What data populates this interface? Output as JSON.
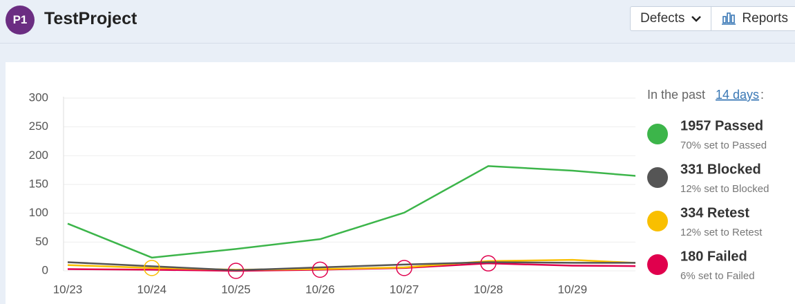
{
  "header": {
    "avatar": "P1",
    "project": "TestProject",
    "buttons": [
      "Defects",
      "Reports"
    ]
  },
  "chart_data": {
    "type": "line",
    "categories": [
      "10/23",
      "10/24",
      "10/25",
      "10/26",
      "10/27",
      "10/28",
      "10/29",
      null
    ],
    "series": [
      {
        "name": "1957 Passed",
        "note": "70% set to Passed",
        "color": "#3cb54a",
        "values": [
          82,
          23,
          38,
          55,
          101,
          182,
          174,
          162
        ]
      },
      {
        "name": "331 Blocked",
        "note": "12% set to Blocked",
        "color": "#555555",
        "values": [
          15,
          8,
          1,
          6,
          11,
          15,
          14,
          14
        ]
      },
      {
        "name": "334 Retest",
        "note": "12% set to Retest",
        "color": "#f9bf00",
        "values": [
          10,
          5,
          2,
          3,
          6,
          17,
          19,
          12
        ]
      },
      {
        "name": "180 Failed",
        "note": "6% set to Failed",
        "color": "#e0004d",
        "values": [
          3,
          2,
          0,
          2,
          5,
          13,
          9,
          8
        ]
      }
    ],
    "ylim": [
      0,
      300
    ],
    "yticks": [
      0,
      50,
      100,
      150,
      200,
      250,
      300
    ],
    "grid": true,
    "legend_title": {
      "prefix": "In the past",
      "link": "14 days",
      "suffix": ":"
    }
  }
}
